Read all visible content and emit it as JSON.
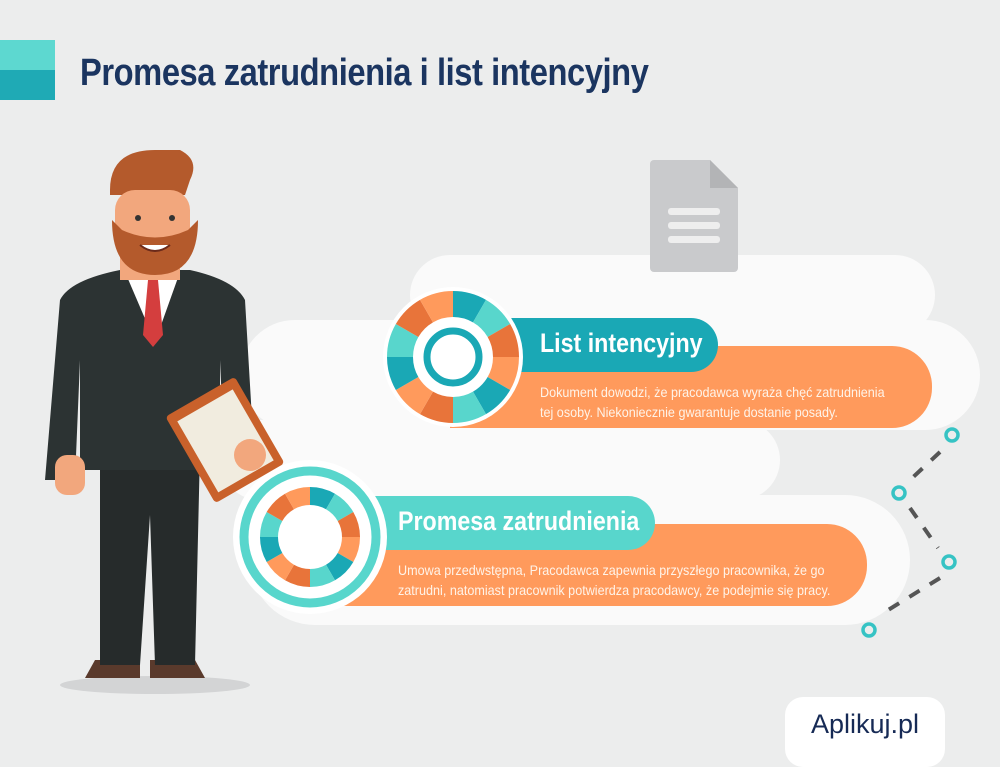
{
  "header": {
    "title": "Promesa zatrudnienia i list intencyjny"
  },
  "items": [
    {
      "title": "List intencyjny",
      "description_lines": [
        "Dokument dowodzi, że pracodawca wyraża chęć zatrudnienia",
        "tej osoby. Niekoniecznie gwarantuje dostanie posady."
      ]
    },
    {
      "title": "Promesa zatrudnienia",
      "description_lines": [
        "Umowa przedwstępna, Pracodawca zapewnia przyszłego pracownika, że go",
        "zatrudni, natomiast pracownik potwierdza pracodawcy, że podejmie się pracy."
      ]
    }
  ],
  "logo": {
    "text": "Aplikuj.pl"
  },
  "colors": {
    "navy": "#1b3560",
    "teal_dark": "#1aa8b5",
    "teal_light": "#58d6cc",
    "orange": "#ff9a5c",
    "orange_dark": "#e8743a"
  }
}
